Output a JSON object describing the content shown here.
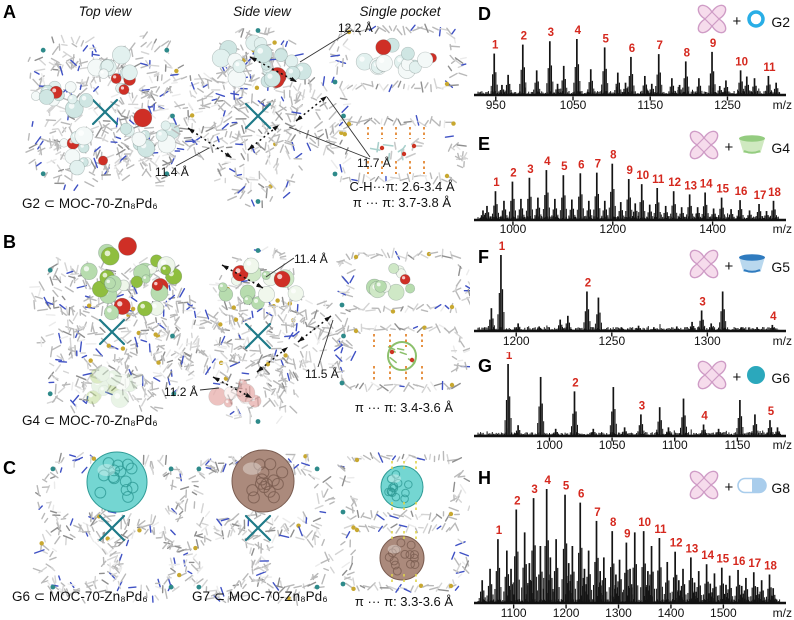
{
  "left": {
    "headers": [
      "Top view",
      "Side view",
      "Single pocket"
    ],
    "rows": [
      {
        "letter": "A",
        "caption": "G2 ⊂ MOC-70-Zn₈Pd₆",
        "measurements": [
          "12.2 Å",
          "11.7 Å",
          "11.4 Å"
        ],
        "notes": [
          "C-H···π: 2.6-3.4 Å",
          "π ··· π: 3.7-3.8 Å"
        ]
      },
      {
        "letter": "B",
        "caption": "G4 ⊂ MOC-70-Zn₈Pd₆",
        "measurements": [
          "11.4 Å",
          "11.5 Å",
          "11.2 Å"
        ],
        "notes": [
          "π ··· π: 3.4-3.6 Å"
        ]
      },
      {
        "letter": "C",
        "caption": "G6 ⊂ MOC-70-Zn₈Pd₆",
        "caption2": "G7 ⊂ MOC-70-Zn₈Pd₆",
        "notes": [
          "π ··· π: 3.3-3.6 Å"
        ]
      }
    ]
  },
  "right": {
    "plus": "+"
  },
  "chart_data": [
    {
      "type": "bar",
      "letter": "D",
      "guest": "G2",
      "icon": "ring",
      "xlabel": "m/z",
      "xlim": [
        927,
        1318
      ],
      "ticks": [
        950,
        1050,
        1150,
        1250
      ],
      "labeled_peaks": [
        [
          948,
          0.74
        ],
        [
          985,
          0.9
        ],
        [
          1020,
          0.96
        ],
        [
          1055,
          1.0
        ],
        [
          1091,
          0.85
        ],
        [
          1125,
          0.68
        ],
        [
          1161,
          0.73
        ],
        [
          1196,
          0.6
        ],
        [
          1230,
          0.77
        ],
        [
          1267,
          0.44
        ],
        [
          1303,
          0.34
        ]
      ],
      "minor_peaks": [
        [
          966,
          0.36
        ],
        [
          1003,
          0.44
        ],
        [
          1038,
          0.52
        ],
        [
          1073,
          0.46
        ],
        [
          1108,
          0.4
        ],
        [
          1143,
          0.34
        ],
        [
          1178,
          0.3
        ],
        [
          1213,
          0.3
        ],
        [
          1248,
          0.26
        ],
        [
          1285,
          0.3
        ],
        [
          1313,
          0.22
        ],
        [
          958,
          0.18
        ],
        [
          1030,
          0.2
        ],
        [
          1118,
          0.22
        ],
        [
          1152,
          0.2
        ],
        [
          1188,
          0.18
        ],
        [
          1240,
          0.16
        ],
        [
          1275,
          0.33
        ]
      ]
    },
    {
      "type": "bar",
      "letter": "E",
      "guest": "G4",
      "icon": "cup_green",
      "xlabel": "m/z",
      "xlim": [
        930,
        1535
      ],
      "ticks": [
        1000,
        1200,
        1400
      ],
      "labeled_peaks": [
        [
          965,
          0.45
        ],
        [
          999,
          0.6
        ],
        [
          1033,
          0.66
        ],
        [
          1067,
          0.78
        ],
        [
          1101,
          0.7
        ],
        [
          1135,
          0.73
        ],
        [
          1168,
          0.74
        ],
        [
          1199,
          0.88
        ],
        [
          1232,
          0.64
        ],
        [
          1258,
          0.56
        ],
        [
          1289,
          0.5
        ],
        [
          1322,
          0.45
        ],
        [
          1354,
          0.4
        ],
        [
          1385,
          0.43
        ],
        [
          1418,
          0.35
        ],
        [
          1455,
          0.31
        ],
        [
          1493,
          0.25
        ],
        [
          1522,
          0.3
        ]
      ],
      "minor_peaks": [
        [
          982,
          0.3
        ],
        [
          1016,
          0.33
        ],
        [
          1050,
          0.35
        ],
        [
          1084,
          0.33
        ],
        [
          1118,
          0.32
        ],
        [
          1152,
          0.3
        ],
        [
          1184,
          0.3
        ],
        [
          1216,
          0.28
        ],
        [
          1245,
          0.26
        ],
        [
          1274,
          0.24
        ],
        [
          1306,
          0.22
        ],
        [
          1338,
          0.2
        ],
        [
          1370,
          0.2
        ],
        [
          1402,
          0.18
        ],
        [
          1437,
          0.17
        ],
        [
          1474,
          0.15
        ],
        [
          1508,
          0.14
        ],
        [
          948,
          0.22
        ],
        [
          940,
          0.15
        ]
      ]
    },
    {
      "type": "bar",
      "letter": "F",
      "guest": "G5",
      "icon": "cup_blue",
      "xlabel": "m/z",
      "xlim": [
        1180,
        1338
      ],
      "ticks": [
        1200,
        1250,
        1300
      ],
      "labeled_peaks": [
        [
          1192,
          1.0
        ],
        [
          1237,
          0.52
        ],
        [
          1297,
          0.27
        ],
        [
          1334,
          0.08
        ]
      ],
      "minor_peaks": [
        [
          1243,
          0.44
        ],
        [
          1308,
          0.52
        ],
        [
          1223,
          0.15
        ],
        [
          1227,
          0.2
        ],
        [
          1201,
          0.1
        ],
        [
          1212,
          0.06
        ],
        [
          1255,
          0.05
        ],
        [
          1264,
          0.07
        ],
        [
          1272,
          0.05
        ],
        [
          1284,
          0.06
        ],
        [
          1292,
          0.12
        ],
        [
          1302,
          0.1
        ],
        [
          1318,
          0.05
        ],
        [
          1326,
          0.05
        ],
        [
          1187,
          0.3
        ]
      ]
    },
    {
      "type": "bar",
      "letter": "G",
      "guest": "G6",
      "icon": "sphere",
      "xlabel": "m/z",
      "xlim": [
        943,
        1184
      ],
      "ticks": [
        1000,
        1050,
        1100,
        1150
      ],
      "labeled_peaks": [
        [
          967,
          1.0
        ],
        [
          1020,
          0.62
        ],
        [
          1073,
          0.3
        ],
        [
          1123,
          0.16
        ],
        [
          1176,
          0.22
        ]
      ],
      "minor_peaks": [
        [
          993,
          0.82
        ],
        [
          1051,
          0.68
        ],
        [
          1088,
          0.4
        ],
        [
          1107,
          0.52
        ],
        [
          1152,
          0.5
        ],
        [
          1164,
          0.3
        ],
        [
          975,
          0.15
        ],
        [
          1005,
          0.1
        ],
        [
          1035,
          0.1
        ],
        [
          1060,
          0.12
        ],
        [
          1095,
          0.12
        ],
        [
          1135,
          0.1
        ],
        [
          1182,
          0.12
        ]
      ]
    },
    {
      "type": "bar",
      "letter": "H",
      "guest": "G8",
      "icon": "pill",
      "xlabel": "m/z",
      "xlim": [
        1032,
        1608
      ],
      "ticks": [
        1100,
        1200,
        1300,
        1400,
        1500
      ],
      "labeled_peaks": [
        [
          1070,
          0.56
        ],
        [
          1105,
          0.82
        ],
        [
          1138,
          0.92
        ],
        [
          1163,
          1.0
        ],
        [
          1198,
          0.95
        ],
        [
          1227,
          0.88
        ],
        [
          1258,
          0.72
        ],
        [
          1288,
          0.63
        ],
        [
          1315,
          0.53
        ],
        [
          1348,
          0.63
        ],
        [
          1378,
          0.57
        ],
        [
          1408,
          0.45
        ],
        [
          1438,
          0.4
        ],
        [
          1468,
          0.34
        ],
        [
          1497,
          0.31
        ],
        [
          1528,
          0.29
        ],
        [
          1558,
          0.27
        ],
        [
          1588,
          0.25
        ]
      ],
      "minor_peaks": [
        [
          1055,
          0.3
        ],
        [
          1087,
          0.46
        ],
        [
          1121,
          0.62
        ],
        [
          1151,
          0.5
        ],
        [
          1181,
          0.56
        ],
        [
          1212,
          0.5
        ],
        [
          1243,
          0.46
        ],
        [
          1272,
          0.4
        ],
        [
          1302,
          0.38
        ],
        [
          1331,
          0.62
        ],
        [
          1363,
          0.5
        ],
        [
          1393,
          0.36
        ],
        [
          1423,
          0.3
        ],
        [
          1453,
          0.28
        ],
        [
          1483,
          0.26
        ],
        [
          1512,
          0.24
        ],
        [
          1543,
          0.22
        ],
        [
          1573,
          0.2
        ],
        [
          1040,
          0.2
        ],
        [
          1095,
          0.3
        ],
        [
          1130,
          0.35
        ],
        [
          1170,
          0.4
        ],
        [
          1205,
          0.35
        ],
        [
          1235,
          0.3
        ],
        [
          1265,
          0.28
        ],
        [
          1295,
          0.25
        ],
        [
          1322,
          0.3
        ],
        [
          1356,
          0.28
        ],
        [
          1415,
          0.2
        ],
        [
          1445,
          0.18
        ],
        [
          1475,
          0.17
        ],
        [
          1505,
          0.16
        ],
        [
          1535,
          0.15
        ],
        [
          1565,
          0.14
        ],
        [
          1595,
          0.13
        ]
      ]
    }
  ],
  "colors": {
    "peak_label": "#d5281e",
    "spectrum": "#141414",
    "cage_pink": "#f6dcec",
    "cage_pink_stroke": "#cf9cc6",
    "ring_blue": "#29aee6",
    "cup_green_body": "#cfe9c0",
    "cup_green_rim": "#94cc80",
    "cup_blue_body": "#b9d8ee",
    "cup_blue_rim": "#2f7bbf",
    "sphere_teal": "#2ba8bc",
    "pill_blue": "#a9cdec"
  }
}
